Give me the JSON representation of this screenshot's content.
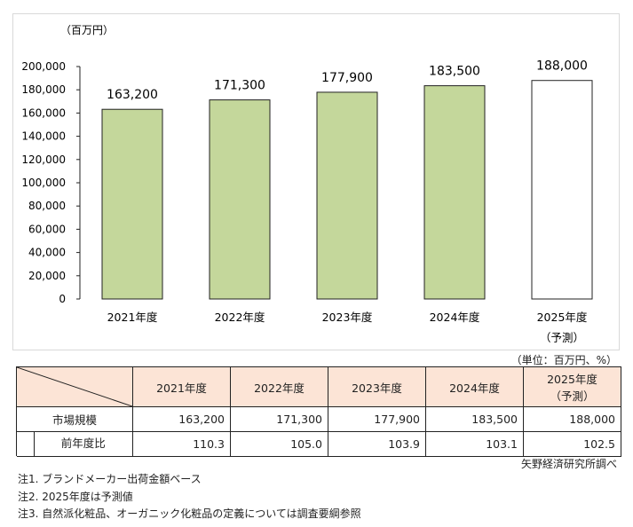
{
  "chart_data": {
    "type": "bar",
    "yunit": "（百万円）",
    "categories": [
      "2021年度",
      "2022年度",
      "2023年度",
      "2024年度",
      "2025年度"
    ],
    "category_sublabels": [
      "",
      "",
      "",
      "",
      "（予測）"
    ],
    "values": [
      163200,
      171300,
      177900,
      183500,
      188000
    ],
    "value_labels": [
      "163,200",
      "171,300",
      "177,900",
      "183,500",
      "188,000"
    ],
    "bar_colors": [
      "#c4d79b",
      "#c4d79b",
      "#c4d79b",
      "#c4d79b",
      "#ffffff"
    ],
    "ylim": [
      0,
      200000
    ],
    "yticks": [
      "0",
      "20,000",
      "40,000",
      "60,000",
      "80,000",
      "100,000",
      "120,000",
      "140,000",
      "160,000",
      "180,000",
      "200,000"
    ],
    "grid": false
  },
  "table": {
    "unit": "（単位：百万円、%）",
    "headers": [
      "2021年度",
      "2022年度",
      "2023年度",
      "2024年度",
      "2025年度"
    ],
    "header_sub": [
      "",
      "",
      "",
      "",
      "（予測）"
    ],
    "rows": [
      {
        "label": "市場規模",
        "values": [
          "163,200",
          "171,300",
          "177,900",
          "183,500",
          "188,000"
        ]
      },
      {
        "label": "前年度比",
        "values": [
          "110.3",
          "105.0",
          "103.9",
          "103.1",
          "102.5"
        ]
      }
    ],
    "source": "矢野経済研究所調べ"
  },
  "notes": [
    "注1. ブランドメーカー出荷金額ベース",
    "注2. 2025年度は予測値",
    "注3. 自然派化粧品、オーガニック化粧品の定義については調査要綱参照"
  ]
}
